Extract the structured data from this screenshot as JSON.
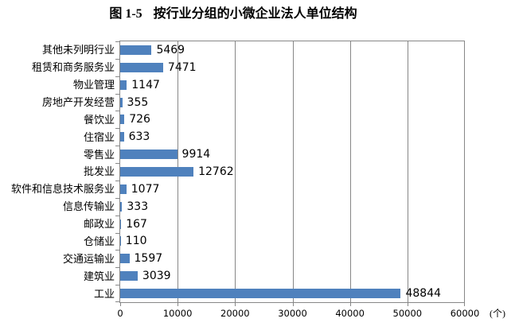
{
  "title": {
    "prefix": "图 1-5",
    "text": "按行业分组的小微企业法人单位结构"
  },
  "chart_data": {
    "type": "bar",
    "orientation": "horizontal",
    "title": "图 1-5 按行业分组的小微企业法人单位结构",
    "categories": [
      "其他未列明行业",
      "租赁和商务服务业",
      "物业管理",
      "房地产开发经营",
      "餐饮业",
      "住宿业",
      "零售业",
      "批发业",
      "软件和信息技术服务业",
      "信息传输业",
      "邮政业",
      "仓储业",
      "交通运输业",
      "建筑业",
      "工业"
    ],
    "values": [
      5469,
      7471,
      1147,
      355,
      726,
      633,
      9914,
      12762,
      1077,
      333,
      167,
      110,
      1597,
      3039,
      48844
    ],
    "xlim": [
      0,
      60000
    ],
    "x_ticks": [
      "0",
      "10000",
      "20000",
      "30000",
      "40000",
      "50000",
      "60000"
    ],
    "xlabel_unit": "(个)",
    "ylabel": "",
    "legend": "none",
    "grid": "vertical gridlines on",
    "value_labels": "shown at bar ends",
    "bar_color": "#4F81BD",
    "axis_color": "#878787",
    "text_color": "#000000",
    "background_color": "#FFFFFF"
  }
}
